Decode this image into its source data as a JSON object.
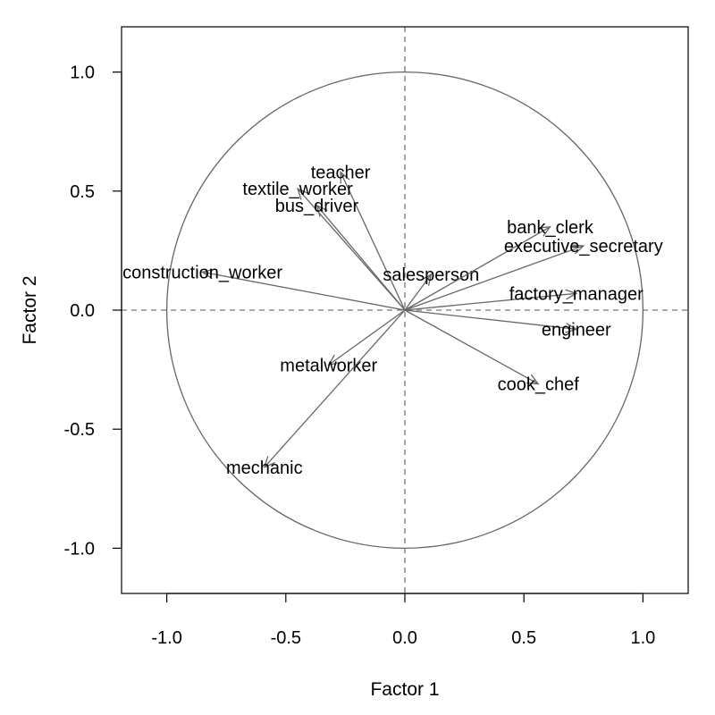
{
  "chart_data": {
    "type": "scatter",
    "subtype": "factor-loading biplot (correlation circle)",
    "xlabel": "Factor 1",
    "ylabel": "Factor 2",
    "xlim": [
      -1.19,
      1.19
    ],
    "ylim": [
      -1.19,
      1.19
    ],
    "x_ticks": [
      -1.0,
      -0.5,
      0.0,
      0.5,
      1.0
    ],
    "x_tick_labels": [
      "-1.0",
      "-0.5",
      "0.0",
      "0.5",
      "1.0"
    ],
    "y_ticks": [
      -1.0,
      -0.5,
      0.0,
      0.5,
      1.0
    ],
    "y_tick_labels": [
      "-1.0",
      "-0.5",
      "0.0",
      "0.5",
      "1.0"
    ],
    "grid": false,
    "reference_lines": "dashed lines at x = 0 and y = 0",
    "unit_circle_radius": 1.0,
    "colors": {
      "arrows": "#666666",
      "circle": "#666666",
      "reference_lines": "#777777",
      "text": "#000000"
    },
    "points": [
      {
        "label": "teacher",
        "x": -0.27,
        "y": 0.58
      },
      {
        "label": "textile_worker",
        "x": -0.45,
        "y": 0.51
      },
      {
        "label": "bus_driver",
        "x": -0.37,
        "y": 0.44
      },
      {
        "label": "construction_worker",
        "x": -0.85,
        "y": 0.16
      },
      {
        "label": "salesperson",
        "x": 0.11,
        "y": 0.15
      },
      {
        "label": "bank_clerk",
        "x": 0.61,
        "y": 0.35
      },
      {
        "label": "executive_secretary",
        "x": 0.75,
        "y": 0.27
      },
      {
        "label": "factory_manager",
        "x": 0.72,
        "y": 0.07
      },
      {
        "label": "engineer",
        "x": 0.72,
        "y": -0.08
      },
      {
        "label": "metalworker",
        "x": -0.32,
        "y": -0.23
      },
      {
        "label": "cook_chef",
        "x": 0.56,
        "y": -0.31
      },
      {
        "label": "mechanic",
        "x": -0.59,
        "y": -0.66
      }
    ]
  }
}
